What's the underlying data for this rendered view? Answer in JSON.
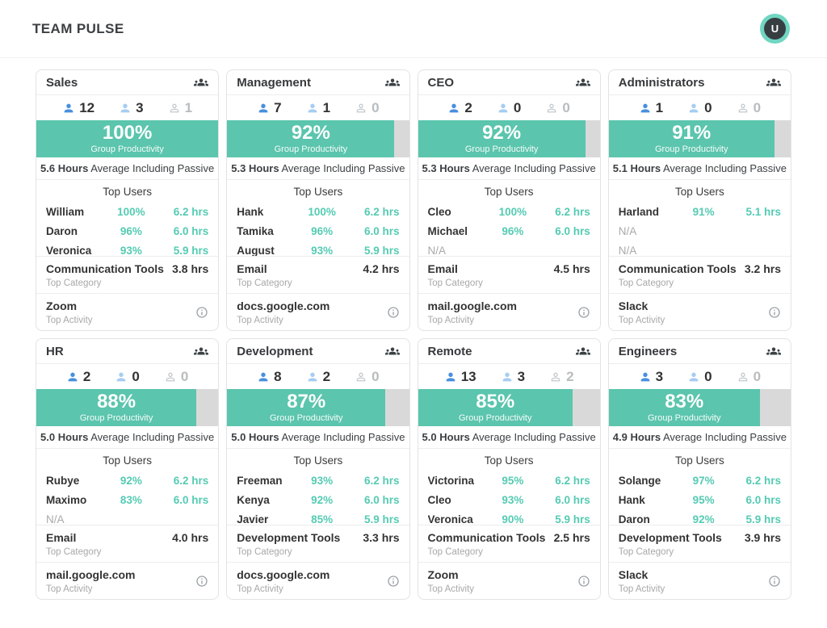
{
  "header": {
    "title": "TEAM PULSE",
    "avatar_initial": "U"
  },
  "labels": {
    "group_productivity": "Group Productivity",
    "avg_suffix": " Average Including Passive",
    "hours_word": "Hours",
    "top_users": "Top Users",
    "top_category": "Top Category",
    "top_activity": "Top Activity",
    "na": "N/A"
  },
  "colors": {
    "accent_teal": "#5bc5ad",
    "value_teal": "#55cbb3",
    "bar_track": "#d9d9d9",
    "active_blue": "#478fe0",
    "idle_blue": "#a6cdf2",
    "offline_gray": "#c4c9cd",
    "avatar_ring": "#70d6c2"
  },
  "cards": [
    {
      "name": "Sales",
      "counts": {
        "active": "12",
        "idle": "3",
        "offline": "1"
      },
      "productivity_pct": 100,
      "productivity_label": "100%",
      "avg_hours": "5.6",
      "top_users": [
        {
          "name": "William",
          "pct": "100%",
          "hrs": "6.2 hrs"
        },
        {
          "name": "Daron",
          "pct": "96%",
          "hrs": "6.0 hrs"
        },
        {
          "name": "Veronica",
          "pct": "93%",
          "hrs": "5.9 hrs"
        }
      ],
      "top_category": {
        "name": "Communication Tools",
        "hrs": "3.8 hrs"
      },
      "top_activity": "Zoom"
    },
    {
      "name": "Management",
      "counts": {
        "active": "7",
        "idle": "1",
        "offline": "0"
      },
      "productivity_pct": 92,
      "productivity_label": "92%",
      "avg_hours": "5.3",
      "top_users": [
        {
          "name": "Hank",
          "pct": "100%",
          "hrs": "6.2 hrs"
        },
        {
          "name": "Tamika",
          "pct": "96%",
          "hrs": "6.0 hrs"
        },
        {
          "name": "August",
          "pct": "93%",
          "hrs": "5.9 hrs"
        }
      ],
      "top_category": {
        "name": "Email",
        "hrs": "4.2 hrs"
      },
      "top_activity": "docs.google.com"
    },
    {
      "name": "CEO",
      "counts": {
        "active": "2",
        "idle": "0",
        "offline": "0"
      },
      "productivity_pct": 92,
      "productivity_label": "92%",
      "avg_hours": "5.3",
      "top_users": [
        {
          "name": "Cleo",
          "pct": "100%",
          "hrs": "6.2 hrs"
        },
        {
          "name": "Michael",
          "pct": "96%",
          "hrs": "6.0 hrs"
        },
        {
          "name": "N/A",
          "pct": "",
          "hrs": ""
        }
      ],
      "top_category": {
        "name": "Email",
        "hrs": "4.5 hrs"
      },
      "top_activity": "mail.google.com"
    },
    {
      "name": "Administrators",
      "counts": {
        "active": "1",
        "idle": "0",
        "offline": "0"
      },
      "productivity_pct": 91,
      "productivity_label": "91%",
      "avg_hours": "5.1",
      "top_users": [
        {
          "name": "Harland",
          "pct": "91%",
          "hrs": "5.1 hrs"
        },
        {
          "name": "N/A",
          "pct": "",
          "hrs": ""
        },
        {
          "name": "N/A",
          "pct": "",
          "hrs": ""
        }
      ],
      "top_category": {
        "name": "Communication Tools",
        "hrs": "3.2 hrs"
      },
      "top_activity": "Slack"
    },
    {
      "name": "HR",
      "counts": {
        "active": "2",
        "idle": "0",
        "offline": "0"
      },
      "productivity_pct": 88,
      "productivity_label": "88%",
      "avg_hours": "5.0",
      "top_users": [
        {
          "name": "Rubye",
          "pct": "92%",
          "hrs": "6.2 hrs"
        },
        {
          "name": "Maximo",
          "pct": "83%",
          "hrs": "6.0 hrs"
        },
        {
          "name": "N/A",
          "pct": "",
          "hrs": ""
        }
      ],
      "top_category": {
        "name": "Email",
        "hrs": "4.0 hrs"
      },
      "top_activity": "mail.google.com"
    },
    {
      "name": "Development",
      "counts": {
        "active": "8",
        "idle": "2",
        "offline": "0"
      },
      "productivity_pct": 87,
      "productivity_label": "87%",
      "avg_hours": "5.0",
      "top_users": [
        {
          "name": "Freeman",
          "pct": "93%",
          "hrs": "6.2 hrs"
        },
        {
          "name": "Kenya",
          "pct": "92%",
          "hrs": "6.0 hrs"
        },
        {
          "name": "Javier",
          "pct": "85%",
          "hrs": "5.9 hrs"
        }
      ],
      "top_category": {
        "name": "Development Tools",
        "hrs": "3.3 hrs"
      },
      "top_activity": "docs.google.com"
    },
    {
      "name": "Remote",
      "counts": {
        "active": "13",
        "idle": "3",
        "offline": "2"
      },
      "productivity_pct": 85,
      "productivity_label": "85%",
      "avg_hours": "5.0",
      "top_users": [
        {
          "name": "Victorina",
          "pct": "95%",
          "hrs": "6.2 hrs"
        },
        {
          "name": "Cleo",
          "pct": "93%",
          "hrs": "6.0 hrs"
        },
        {
          "name": "Veronica",
          "pct": "90%",
          "hrs": "5.9 hrs"
        }
      ],
      "top_category": {
        "name": "Communication Tools",
        "hrs": "2.5 hrs"
      },
      "top_activity": "Zoom"
    },
    {
      "name": "Engineers",
      "counts": {
        "active": "3",
        "idle": "0",
        "offline": "0"
      },
      "productivity_pct": 83,
      "productivity_label": "83%",
      "avg_hours": "4.9",
      "top_users": [
        {
          "name": "Solange",
          "pct": "97%",
          "hrs": "6.2 hrs"
        },
        {
          "name": "Hank",
          "pct": "95%",
          "hrs": "6.0 hrs"
        },
        {
          "name": "Daron",
          "pct": "92%",
          "hrs": "5.9 hrs"
        }
      ],
      "top_category": {
        "name": "Development Tools",
        "hrs": "3.9 hrs"
      },
      "top_activity": "Slack"
    }
  ]
}
